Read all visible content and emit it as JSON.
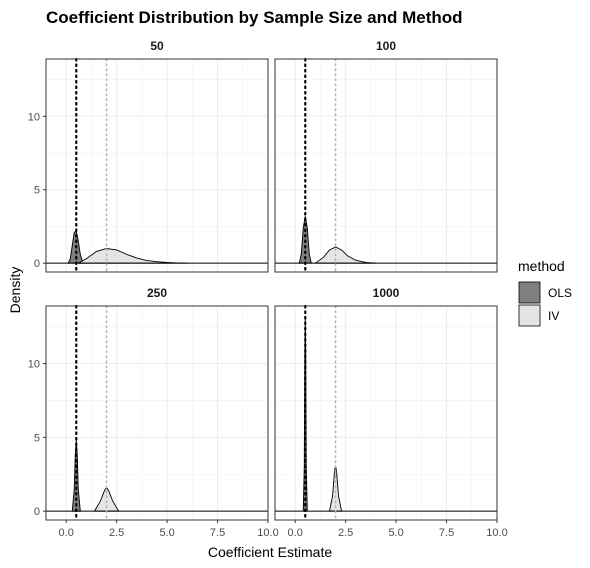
{
  "chart_data": {
    "type": "area",
    "title": "Coefficient Distribution by Sample Size and Method",
    "xlabel": "Coefficient Estimate",
    "ylabel": "Density",
    "xlim": [
      -1.0,
      10.0
    ],
    "ylim": [
      -0.6,
      13.9
    ],
    "x_ticks": [
      0.0,
      2.5,
      5.0,
      7.5,
      10.0
    ],
    "x_tick_labels": [
      "0.0",
      "2.5",
      "5.0",
      "7.5",
      "10.0"
    ],
    "y_ticks": [
      0,
      5,
      10
    ],
    "y_tick_labels": [
      "0",
      "5",
      "10"
    ],
    "grid": true,
    "legend": {
      "title": "method",
      "position": "right",
      "entries": [
        {
          "name": "OLS",
          "color": "#7f7f7f"
        },
        {
          "name": "IV",
          "color": "#e5e5e5"
        }
      ]
    },
    "reference_lines": [
      {
        "x": 0.5,
        "style": "dotted",
        "color": "#000000"
      },
      {
        "x": 2.0,
        "style": "dotted",
        "color": "#b3b3b3"
      }
    ],
    "panels": [
      {
        "label": "50",
        "series": [
          {
            "name": "OLS",
            "x": [
              0.1,
              0.2,
              0.3,
              0.4,
              0.5,
              0.6,
              0.7,
              0.8,
              0.9
            ],
            "y": [
              0.0,
              0.3,
              1.2,
              2.1,
              2.2,
              1.5,
              0.6,
              0.15,
              0.0
            ]
          },
          {
            "name": "IV",
            "x": [
              0.6,
              1.0,
              1.5,
              2.0,
              2.5,
              3.0,
              3.5,
              4.0,
              4.5,
              5.0,
              5.5,
              6.0
            ],
            "y": [
              0.0,
              0.3,
              0.8,
              1.0,
              0.9,
              0.6,
              0.35,
              0.18,
              0.1,
              0.05,
              0.02,
              0.0
            ]
          }
        ]
      },
      {
        "label": "100",
        "series": [
          {
            "name": "OLS",
            "x": [
              0.2,
              0.3,
              0.4,
              0.5,
              0.6,
              0.7,
              0.8
            ],
            "y": [
              0.0,
              0.6,
              2.4,
              3.2,
              2.4,
              0.6,
              0.0
            ]
          },
          {
            "name": "IV",
            "x": [
              1.0,
              1.4,
              1.7,
              2.0,
              2.3,
              2.6,
              3.0,
              3.5,
              4.0
            ],
            "y": [
              0.0,
              0.4,
              0.9,
              1.1,
              0.9,
              0.5,
              0.2,
              0.05,
              0.0
            ]
          }
        ]
      },
      {
        "label": "250",
        "series": [
          {
            "name": "OLS",
            "x": [
              0.3,
              0.4,
              0.45,
              0.5,
              0.55,
              0.6,
              0.7
            ],
            "y": [
              0.0,
              1.5,
              3.8,
              4.8,
              3.8,
              1.5,
              0.0
            ]
          },
          {
            "name": "IV",
            "x": [
              1.4,
              1.7,
              1.9,
              2.0,
              2.1,
              2.3,
              2.6
            ],
            "y": [
              0.0,
              0.7,
              1.4,
              1.6,
              1.4,
              0.7,
              0.0
            ]
          }
        ]
      },
      {
        "label": "1000",
        "series": [
          {
            "name": "OLS",
            "x": [
              0.4,
              0.45,
              0.48,
              0.5,
              0.52,
              0.55,
              0.6
            ],
            "y": [
              0.0,
              3.0,
              11.0,
              13.2,
              11.0,
              3.0,
              0.0
            ]
          },
          {
            "name": "IV",
            "x": [
              1.7,
              1.85,
              1.95,
              2.0,
              2.05,
              2.15,
              2.3
            ],
            "y": [
              0.0,
              1.0,
              2.7,
              3.1,
              2.7,
              1.0,
              0.0
            ]
          }
        ]
      }
    ]
  }
}
